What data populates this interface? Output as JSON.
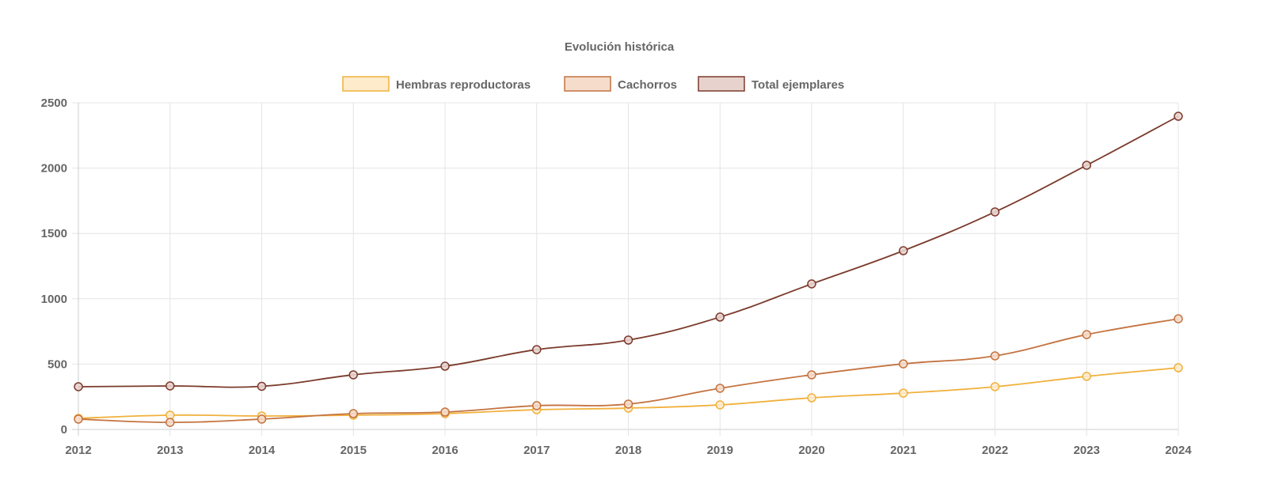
{
  "chart_data": {
    "type": "line",
    "title": "Evolución histórica",
    "legend_position": "top",
    "grid": true,
    "x": [
      "2012",
      "2013",
      "2014",
      "2015",
      "2016",
      "2017",
      "2018",
      "2019",
      "2020",
      "2021",
      "2022",
      "2023",
      "2024"
    ],
    "ylim": [
      0,
      2500
    ],
    "yticks": [
      0,
      500,
      1000,
      1500,
      2000,
      2500
    ],
    "series": [
      {
        "name": "Hembras reproductoras",
        "color": "#f0b13c",
        "fill": "#fdebcc",
        "values": [
          85,
          109,
          103,
          109,
          121,
          151,
          163,
          188,
          242,
          278,
          327,
          406,
          472
        ]
      },
      {
        "name": "Cachorros",
        "color": "#c47340",
        "fill": "#f5dccb",
        "values": [
          79,
          54,
          79,
          121,
          133,
          182,
          194,
          315,
          418,
          502,
          563,
          726,
          847
        ]
      },
      {
        "name": "Total ejemplares",
        "color": "#7b3b2c",
        "fill": "#e8d2cd",
        "values": [
          327,
          333,
          330,
          418,
          484,
          611,
          684,
          860,
          1114,
          1368,
          1665,
          2022,
          2397
        ]
      }
    ]
  }
}
